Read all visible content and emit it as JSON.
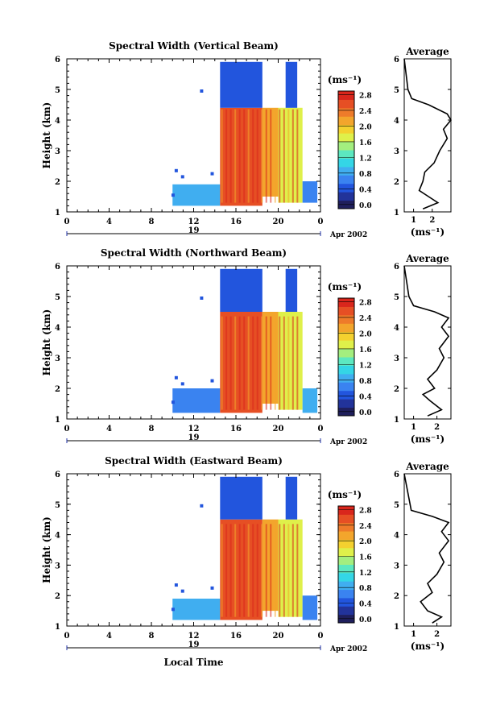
{
  "figure": {
    "xlabel": "Local Time",
    "date_label": "Apr 2002",
    "day_label": "19",
    "height_label": "Height (km)",
    "avg_title": "Average",
    "unit": "(ms⁻¹)",
    "colorbar_ticks": [
      "0.0",
      "0.4",
      "0.8",
      "1.2",
      "1.6",
      "2.0",
      "2.4",
      "2.8"
    ],
    "x_ticks": [
      "0",
      "4",
      "8",
      "12",
      "16",
      "20",
      "0"
    ],
    "y_ticks": [
      "1",
      "2",
      "3",
      "4",
      "5",
      "6"
    ]
  },
  "colors": {
    "scale": [
      "#1f1f5c",
      "#22339a",
      "#2255dd",
      "#3a83f0",
      "#40aef0",
      "#34d6e6",
      "#5ce8c0",
      "#a3ee7f",
      "#dff04a",
      "#f4d12f",
      "#f3a52c",
      "#ee7b2a",
      "#e64f24",
      "#d9261c"
    ],
    "text": "#000000"
  },
  "chart_data": [
    {
      "type": "heatmap",
      "title": "Spectral Width (Vertical Beam)",
      "xlabel": "",
      "ylabel": "Height (km)",
      "xlim": [
        0,
        24
      ],
      "ylim": [
        1,
        6
      ],
      "colorbar_range": [
        0.0,
        3.0
      ],
      "colorbar_label": "(ms⁻¹)",
      "regions": [
        {
          "x": [
            10.0,
            14.5
          ],
          "y": [
            1.2,
            1.9
          ],
          "value": 0.9
        },
        {
          "x": [
            14.5,
            18.5
          ],
          "y": [
            1.2,
            4.4
          ],
          "value": 2.6
        },
        {
          "x": [
            18.5,
            20.0
          ],
          "y": [
            1.5,
            4.4
          ],
          "value": 2.2
        },
        {
          "x": [
            20.0,
            22.3
          ],
          "y": [
            1.3,
            4.4
          ],
          "value": 1.8
        },
        {
          "x": [
            22.3,
            23.7
          ],
          "y": [
            1.3,
            2.0
          ],
          "value": 0.8
        },
        {
          "x": [
            14.5,
            18.5
          ],
          "y": [
            4.4,
            5.9
          ],
          "value": 0.6
        },
        {
          "x": [
            20.7,
            21.8
          ],
          "y": [
            4.4,
            5.9
          ],
          "value": 0.6
        }
      ],
      "profile": {
        "xlim": [
          0.5,
          3.0
        ],
        "xticks": [
          1,
          2
        ],
        "points": [
          [
            1.5,
            1.1
          ],
          [
            2.3,
            1.3
          ],
          [
            1.8,
            1.5
          ],
          [
            1.3,
            1.7
          ],
          [
            1.5,
            2.0
          ],
          [
            1.6,
            2.3
          ],
          [
            2.1,
            2.6
          ],
          [
            2.4,
            3.0
          ],
          [
            2.8,
            3.4
          ],
          [
            2.6,
            3.7
          ],
          [
            3.0,
            4.0
          ],
          [
            2.8,
            4.2
          ],
          [
            1.8,
            4.5
          ],
          [
            0.9,
            4.7
          ],
          [
            0.7,
            5.0
          ],
          [
            0.6,
            5.5
          ],
          [
            0.5,
            6.0
          ]
        ]
      }
    },
    {
      "type": "heatmap",
      "title": "Spectral Width (Northward Beam)",
      "xlabel": "",
      "ylabel": "Height (km)",
      "xlim": [
        0,
        24
      ],
      "ylim": [
        1,
        6
      ],
      "colorbar_range": [
        0.0,
        3.0
      ],
      "colorbar_label": "(ms⁻¹)",
      "regions": [
        {
          "x": [
            10.0,
            14.5
          ],
          "y": [
            1.2,
            2.0
          ],
          "value": 0.8
        },
        {
          "x": [
            14.5,
            18.5
          ],
          "y": [
            1.2,
            4.5
          ],
          "value": 2.7
        },
        {
          "x": [
            18.5,
            20.0
          ],
          "y": [
            1.5,
            4.5
          ],
          "value": 2.3
        },
        {
          "x": [
            20.0,
            22.3
          ],
          "y": [
            1.3,
            4.5
          ],
          "value": 1.9
        },
        {
          "x": [
            22.3,
            23.7
          ],
          "y": [
            1.2,
            2.0
          ],
          "value": 0.9
        },
        {
          "x": [
            14.5,
            18.5
          ],
          "y": [
            4.5,
            5.9
          ],
          "value": 0.6
        },
        {
          "x": [
            20.7,
            21.8
          ],
          "y": [
            4.5,
            5.9
          ],
          "value": 0.6
        }
      ],
      "profile": {
        "xlim": [
          0.6,
          2.6
        ],
        "xticks": [
          1,
          2
        ],
        "points": [
          [
            1.6,
            1.1
          ],
          [
            2.2,
            1.3
          ],
          [
            1.7,
            1.6
          ],
          [
            1.4,
            1.8
          ],
          [
            1.9,
            2.0
          ],
          [
            1.6,
            2.3
          ],
          [
            2.0,
            2.6
          ],
          [
            2.3,
            3.0
          ],
          [
            2.1,
            3.3
          ],
          [
            2.5,
            3.7
          ],
          [
            2.2,
            4.0
          ],
          [
            2.5,
            4.3
          ],
          [
            1.9,
            4.5
          ],
          [
            1.0,
            4.7
          ],
          [
            0.8,
            5.0
          ],
          [
            0.7,
            5.5
          ],
          [
            0.6,
            6.0
          ]
        ]
      }
    },
    {
      "type": "heatmap",
      "title": "Spectral Width (Eastward Beam)",
      "xlabel": "Local Time",
      "ylabel": "Height (km)",
      "xlim": [
        0,
        24
      ],
      "ylim": [
        1,
        6
      ],
      "colorbar_range": [
        0.0,
        3.0
      ],
      "colorbar_label": "(ms⁻¹)",
      "regions": [
        {
          "x": [
            10.0,
            14.5
          ],
          "y": [
            1.2,
            1.9
          ],
          "value": 0.9
        },
        {
          "x": [
            14.5,
            18.5
          ],
          "y": [
            1.2,
            4.5
          ],
          "value": 2.7
        },
        {
          "x": [
            18.5,
            20.0
          ],
          "y": [
            1.5,
            4.5
          ],
          "value": 2.3
        },
        {
          "x": [
            20.0,
            22.3
          ],
          "y": [
            1.3,
            4.5
          ],
          "value": 1.9
        },
        {
          "x": [
            22.3,
            23.7
          ],
          "y": [
            1.2,
            2.0
          ],
          "value": 0.8
        },
        {
          "x": [
            14.5,
            18.5
          ],
          "y": [
            4.5,
            5.9
          ],
          "value": 0.6
        },
        {
          "x": [
            20.7,
            21.8
          ],
          "y": [
            4.5,
            5.9
          ],
          "value": 0.6
        }
      ],
      "profile": {
        "xlim": [
          0.6,
          2.6
        ],
        "xticks": [
          1,
          2
        ],
        "points": [
          [
            1.8,
            1.1
          ],
          [
            2.2,
            1.3
          ],
          [
            1.6,
            1.5
          ],
          [
            1.3,
            1.8
          ],
          [
            1.8,
            2.1
          ],
          [
            1.6,
            2.4
          ],
          [
            2.0,
            2.7
          ],
          [
            2.3,
            3.1
          ],
          [
            2.1,
            3.4
          ],
          [
            2.5,
            3.8
          ],
          [
            2.2,
            4.1
          ],
          [
            2.5,
            4.4
          ],
          [
            1.8,
            4.6
          ],
          [
            0.9,
            4.8
          ],
          [
            0.8,
            5.2
          ],
          [
            0.7,
            5.6
          ],
          [
            0.6,
            6.0
          ]
        ]
      }
    }
  ]
}
